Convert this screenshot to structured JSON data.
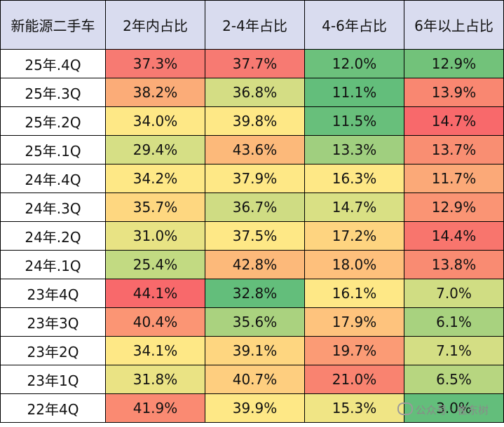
{
  "chart_data": {
    "type": "table",
    "columns": [
      "新能源二手车",
      "2年内占比",
      "2-4年占比",
      "4-6年占比",
      "6年以上占比"
    ],
    "rows": [
      {
        "label": "25年.4Q",
        "values": [
          "37.3%",
          "37.7%",
          "12.0%",
          "12.9%"
        ],
        "colors": [
          "#f77a72",
          "#f77a72",
          "#6cc17c",
          "#72c27a"
        ]
      },
      {
        "label": "25年.3Q",
        "values": [
          "38.2%",
          "36.8%",
          "11.1%",
          "13.9%"
        ],
        "colors": [
          "#fbac78",
          "#d4dd84",
          "#63be7b",
          "#f98771"
        ]
      },
      {
        "label": "25年.2Q",
        "values": [
          "34.0%",
          "39.8%",
          "11.5%",
          "14.7%"
        ],
        "colors": [
          "#fee886",
          "#fee886",
          "#68bf7b",
          "#f8696b"
        ]
      },
      {
        "label": "25年.1Q",
        "values": [
          "29.4%",
          "43.6%",
          "13.3%",
          "13.7%"
        ],
        "colors": [
          "#d6df85",
          "#fcb97a",
          "#a0cf7f",
          "#f98e72"
        ]
      },
      {
        "label": "24年.4Q",
        "values": [
          "34.2%",
          "37.9%",
          "16.3%",
          "11.7%"
        ],
        "colors": [
          "#fee886",
          "#fee886",
          "#fee886",
          "#fba978"
        ]
      },
      {
        "label": "24年.3Q",
        "values": [
          "35.7%",
          "36.7%",
          "14.7%",
          "12.9%"
        ],
        "colors": [
          "#fed780",
          "#cfdc83",
          "#d9e084",
          "#fa9474"
        ]
      },
      {
        "label": "24年.2Q",
        "values": [
          "31.0%",
          "37.5%",
          "17.2%",
          "14.4%"
        ],
        "colors": [
          "#e8e384",
          "#fee886",
          "#fed480",
          "#f8756d"
        ]
      },
      {
        "label": "24年.1Q",
        "values": [
          "25.4%",
          "42.8%",
          "18.0%",
          "13.8%"
        ],
        "colors": [
          "#c2da82",
          "#fcb97a",
          "#fec07c",
          "#f98b72"
        ]
      },
      {
        "label": "23年4Q",
        "values": [
          "44.1%",
          "32.8%",
          "16.1%",
          "7.0%"
        ],
        "colors": [
          "#f8696b",
          "#63be7b",
          "#fee886",
          "#d0dd83"
        ]
      },
      {
        "label": "23年3Q",
        "values": [
          "40.4%",
          "35.6%",
          "17.9%",
          "6.1%"
        ],
        "colors": [
          "#fb9574",
          "#aad27f",
          "#fec37d",
          "#a8d27f"
        ]
      },
      {
        "label": "23年2Q",
        "values": [
          "34.1%",
          "39.1%",
          "19.7%",
          "7.1%"
        ],
        "colors": [
          "#fee886",
          "#fed680",
          "#fb9b75",
          "#d4de84"
        ]
      },
      {
        "label": "23年1Q",
        "values": [
          "31.8%",
          "40.7%",
          "21.0%",
          "6.5%"
        ],
        "colors": [
          "#eae384",
          "#fece7f",
          "#f98370",
          "#b7d680"
        ]
      },
      {
        "label": "22年4Q",
        "values": [
          "41.9%",
          "39.9%",
          "15.3%",
          "3.0%"
        ],
        "colors": [
          "#fa8a72",
          "#fee886",
          "#f0e585",
          "#63be7b"
        ]
      }
    ]
  },
  "header_bg": "#d9dcef",
  "watermark": "公众号 · 崔东树"
}
